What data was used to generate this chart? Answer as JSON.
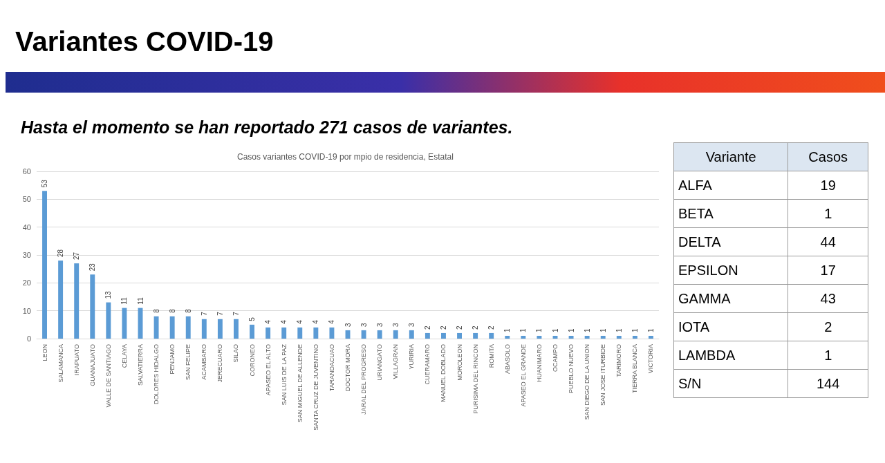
{
  "chart_data": [
    {
      "type": "bar",
      "title": "Variantes COVID-19",
      "subtitle": "Hasta el momento se han reportado 271 casos de variantes.",
      "annotations": [
        "Casos variantes COVID-19 por mpio de residencia, Estatal"
      ],
      "categories": [
        "LEON",
        "SALAMANCA",
        "IRAPUATO",
        "GUANAJUATO",
        "VALLE DE SANTIAGO",
        "CELAYA",
        "SALVATIERRA",
        "DOLORES HIDALGO",
        "PENJAMO",
        "SAN FELIPE",
        "ACAMBARO",
        "JERECUARO",
        "SILAO",
        "CORONEO",
        "APASEO EL ALTO",
        "SAN LUIS DE LA PAZ",
        "SAN MIGUEL DE ALLENDE",
        "SANTA CRUZ DE JUVENTINO",
        "TARANDACUAO",
        "DOCTOR MORA",
        "JARAL DEL PROGRESO",
        "URIANGATO",
        "VILLAGRAN",
        "YURIRIA",
        "CUERAMARO",
        "MANUEL DOBLADO",
        "MOROLEON",
        "PURISIMA DEL RINCON",
        "ROMITA",
        "ABASOLO",
        "APASEO EL GRANDE",
        "HUANIMARO",
        "OCAMPO",
        "PUEBLO NUEVO",
        "SAN DIEGO DE LA UNION",
        "SAN JOSE ITURBIDE",
        "TARIMORO",
        "TIERRA BLANCA",
        "VICTORIA"
      ],
      "values": [
        53,
        28,
        27,
        23,
        13,
        11,
        11,
        8,
        8,
        8,
        7,
        7,
        7,
        5,
        4,
        4,
        4,
        4,
        4,
        3,
        3,
        3,
        3,
        3,
        2,
        2,
        2,
        2,
        2,
        1,
        1,
        1,
        1,
        1,
        1,
        1,
        1,
        1,
        1
      ],
      "color": "#5b9bd5",
      "ylim": [
        0,
        60
      ],
      "yticks": [
        0,
        10,
        20,
        30,
        40,
        50,
        60
      ],
      "grid": "y",
      "data_labels": true
    },
    {
      "type": "other",
      "xlabel": "Variante",
      "ylabel": "Casos",
      "categories": [
        "ALFA",
        "BETA",
        "DELTA",
        "EPSILON",
        "GAMMA",
        "IOTA",
        "LAMBDA",
        "S/N"
      ],
      "values": [
        19,
        1,
        44,
        17,
        43,
        2,
        1,
        144
      ],
      "data_labels": true
    }
  ]
}
